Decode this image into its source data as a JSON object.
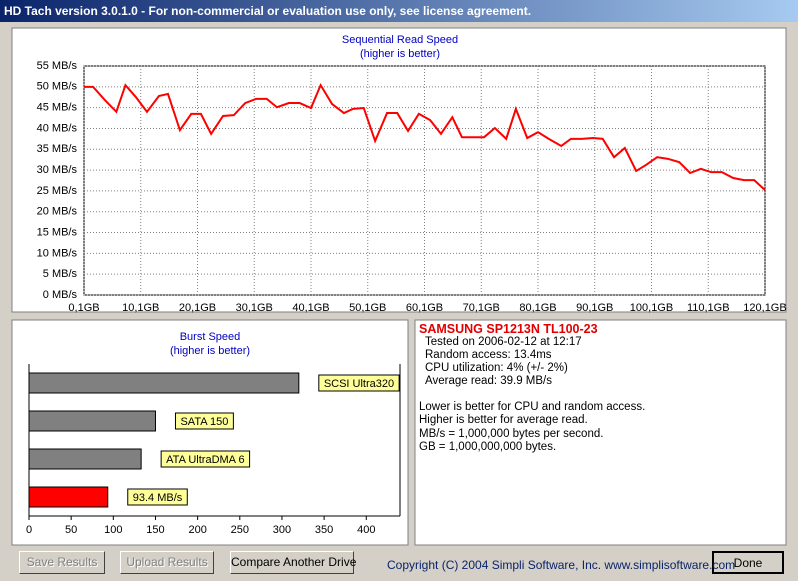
{
  "window": {
    "title": "HD Tach version 3.0.1.0  - For non-commercial or evaluation use only, see license agreement."
  },
  "chart_data": [
    {
      "type": "line",
      "title": "Sequential Read Speed",
      "subtitle": "(higher is better)",
      "color": "#ff0000",
      "grid": true,
      "x": [
        0.1,
        1.7,
        3.8,
        5.8,
        7.4,
        9.2,
        11.2,
        13.3,
        14.9,
        17.0,
        19.0,
        20.7,
        22.5,
        24.6,
        26.5,
        28.5,
        30.4,
        32.3,
        34.1,
        36.2,
        38.1,
        40.1,
        41.8,
        43.8,
        45.9,
        47.5,
        49.4,
        51.4,
        53.5,
        55.3,
        57.2,
        59.1,
        61.1,
        63.0,
        65.0,
        66.7,
        68.6,
        70.6,
        72.5,
        74.5,
        76.2,
        78.2,
        80.1,
        82.0,
        84.2,
        85.9,
        87.8,
        89.8,
        91.5,
        93.5,
        95.4,
        97.4,
        99.1,
        101.1,
        103.0,
        105.0,
        106.9,
        108.8,
        110.6,
        112.5,
        114.5,
        116.4,
        118.2,
        120.1
      ],
      "values": [
        50.0,
        50.0,
        46.8,
        44.0,
        50.4,
        47.6,
        44.0,
        47.8,
        48.3,
        39.6,
        43.5,
        43.5,
        38.7,
        43.0,
        43.2,
        46.1,
        47.1,
        47.1,
        45.1,
        46.1,
        46.1,
        44.9,
        50.4,
        45.9,
        43.7,
        44.7,
        44.9,
        37.0,
        43.7,
        43.7,
        39.4,
        43.5,
        42.0,
        38.7,
        42.7,
        37.9,
        37.9,
        37.9,
        40.1,
        37.5,
        44.7,
        37.7,
        39.1,
        37.5,
        35.8,
        37.5,
        37.5,
        37.7,
        37.5,
        33.1,
        35.3,
        29.8,
        31.2,
        33.1,
        32.7,
        31.9,
        29.3,
        30.3,
        29.5,
        29.5,
        28.1,
        27.6,
        27.6,
        25.2
      ],
      "xlim": [
        0.1,
        120.1
      ],
      "xticks": [
        {
          "value": 0.1,
          "label": "0,1GB"
        },
        {
          "value": 10.1,
          "label": "10,1GB"
        },
        {
          "value": 20.1,
          "label": "20,1GB"
        },
        {
          "value": 30.1,
          "label": "30,1GB"
        },
        {
          "value": 40.1,
          "label": "40,1GB"
        },
        {
          "value": 50.1,
          "label": "50,1GB"
        },
        {
          "value": 60.1,
          "label": "60,1GB"
        },
        {
          "value": 70.1,
          "label": "70,1GB"
        },
        {
          "value": 80.1,
          "label": "80,1GB"
        },
        {
          "value": 90.1,
          "label": "90,1GB"
        },
        {
          "value": 100.1,
          "label": "100,1GB"
        },
        {
          "value": 110.1,
          "label": "110,1GB"
        },
        {
          "value": 120.1,
          "label": "120,1GB"
        }
      ],
      "ylim": [
        0,
        55
      ],
      "yticks": [
        {
          "value": 0,
          "label": "0 MB/s"
        },
        {
          "value": 5,
          "label": "5 MB/s"
        },
        {
          "value": 10,
          "label": "10 MB/s"
        },
        {
          "value": 15,
          "label": "15 MB/s"
        },
        {
          "value": 20,
          "label": "20 MB/s"
        },
        {
          "value": 25,
          "label": "25 MB/s"
        },
        {
          "value": 30,
          "label": "30 MB/s"
        },
        {
          "value": 35,
          "label": "35 MB/s"
        },
        {
          "value": 40,
          "label": "40 MB/s"
        },
        {
          "value": 45,
          "label": "45 MB/s"
        },
        {
          "value": 50,
          "label": "50 MB/s"
        },
        {
          "value": 55,
          "label": "55 MB/s"
        }
      ]
    },
    {
      "type": "hbar",
      "title": "Burst Speed",
      "subtitle": "(higher is better)",
      "grid": false,
      "categories": [
        "SCSI Ultra320",
        "SATA 150",
        "ATA UltraDMA 6",
        null
      ],
      "values": [
        320,
        150,
        133,
        93.4
      ],
      "value_labels": [
        null,
        null,
        null,
        "93.4 MB/s"
      ],
      "colors": [
        "#808080",
        "#808080",
        "#808080",
        "#ff0000"
      ],
      "xlim": [
        0,
        440
      ],
      "xticks": [
        0,
        50,
        100,
        150,
        200,
        250,
        300,
        350,
        400
      ]
    }
  ],
  "info": {
    "drive": "SAMSUNG SP1213N TL100-23",
    "details": [
      "Tested on 2006-02-12 at 12:17",
      "Random access: 13.4ms",
      "CPU utilization: 4% (+/- 2%)",
      "Average read: 39.9 MB/s"
    ],
    "notes": [
      "Lower is better for CPU and random access.",
      "Higher is better for average read.",
      "MB/s = 1,000,000 bytes per second.",
      "GB = 1,000,000,000 bytes."
    ]
  },
  "buttons": {
    "save": "Save Results",
    "upload": "Upload Results",
    "compare": "Compare Another Drive",
    "done": "Done"
  },
  "copyright": "Copyright (C) 2004 Simpli Software, Inc. www.simplisoftware.com"
}
